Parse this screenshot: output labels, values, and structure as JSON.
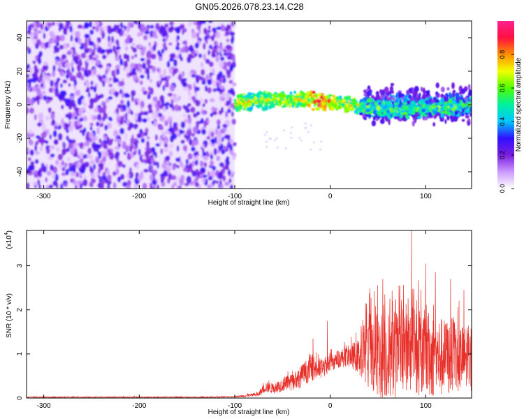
{
  "title": "GN05.2026.078.23.14.C28",
  "chart_data": [
    {
      "type": "heatmap",
      "name": "spectrogram",
      "xlabel": "Height of straight line (km)",
      "ylabel": "Frequency (Hz)",
      "xlim": [
        -318,
        148
      ],
      "ylim": [
        -50,
        50
      ],
      "xticks": [
        -300,
        -200,
        -100,
        0,
        100
      ],
      "yticks": [
        -40,
        -20,
        0,
        20,
        40
      ],
      "colorbar": {
        "label": "Normalized spectral amplitude",
        "range": [
          0,
          1
        ],
        "ticks": [
          "0.0",
          "0.2",
          "0.4",
          "0.6",
          "0.8"
        ],
        "tick_values": [
          0,
          0.2,
          0.4,
          0.6,
          0.8
        ],
        "colors": [
          "#ffffff",
          "#cc99ff",
          "#7a1ee0",
          "#3010ff",
          "#00c8ff",
          "#00f0a0",
          "#50ff00",
          "#f0ff00",
          "#ff9000",
          "#ff1040",
          "#ff2090"
        ]
      },
      "regions": [
        {
          "name": "broadband noise",
          "x": [
            -318,
            -100
          ],
          "freq": [
            -50,
            50
          ],
          "amplitude": [
            0.05,
            0.3
          ]
        },
        {
          "name": "narrowband signal",
          "x": [
            -100,
            148
          ],
          "freq": [
            -6,
            6
          ],
          "amplitude": [
            0.2,
            1.0
          ],
          "peak_x": -10,
          "peak_amplitude": 0.98
        },
        {
          "name": "broadened band",
          "x": [
            35,
            148
          ],
          "freq": [
            -15,
            15
          ],
          "amplitude": [
            0.15,
            0.5
          ]
        }
      ]
    },
    {
      "type": "line",
      "name": "snr",
      "xlabel": "Height of straight line (km)",
      "ylabel": "SNR (10 * v/v)",
      "yscale_label": "(x10^4)",
      "yscale_mantissa": "(x10",
      "yscale_exponent": "4",
      "yscale_close": ")",
      "xlim": [
        -318,
        148
      ],
      "ylim": [
        0,
        3.8
      ],
      "xticks": [
        -300,
        -200,
        -100,
        0,
        100
      ],
      "yticks": [
        0,
        1,
        2,
        3
      ],
      "series": [
        {
          "name": "SNR",
          "color": "#e8302a",
          "x": [
            -318,
            -200,
            -120,
            -100,
            -75,
            -68,
            -60,
            -50,
            -40,
            -30,
            -20,
            -10,
            0,
            10,
            20,
            30,
            35,
            40,
            50,
            60,
            70,
            80,
            85,
            90,
            100,
            110,
            120,
            130,
            140,
            148
          ],
          "mean": [
            0.02,
            0.02,
            0.02,
            0.03,
            0.08,
            0.25,
            0.22,
            0.3,
            0.35,
            0.5,
            0.7,
            0.65,
            0.8,
            0.9,
            0.95,
            0.95,
            1.0,
            1.0,
            1.0,
            0.95,
            1.0,
            1.05,
            1.0,
            1.05,
            1.0,
            0.95,
            0.9,
            0.95,
            0.9,
            0.85
          ],
          "spread": [
            0.01,
            0.01,
            0.01,
            0.01,
            0.05,
            0.12,
            0.12,
            0.15,
            0.2,
            0.25,
            0.3,
            0.25,
            0.2,
            0.2,
            0.25,
            0.4,
            0.8,
            0.95,
            1.0,
            1.0,
            1.0,
            1.05,
            1.1,
            1.05,
            1.0,
            0.95,
            0.9,
            0.85,
            0.75,
            0.7
          ],
          "peaks": [
            {
              "x": 85,
              "y": 3.8
            },
            {
              "x": 100,
              "y": 3.05
            },
            {
              "x": 110,
              "y": 2.85
            },
            {
              "x": 55,
              "y": 2.7
            },
            {
              "x": 126,
              "y": 2.7
            },
            {
              "x": 72,
              "y": 2.55
            },
            {
              "x": 140,
              "y": 2.45
            },
            {
              "x": -3,
              "y": 1.75
            },
            {
              "x": -18,
              "y": 1.35
            }
          ]
        }
      ]
    }
  ]
}
